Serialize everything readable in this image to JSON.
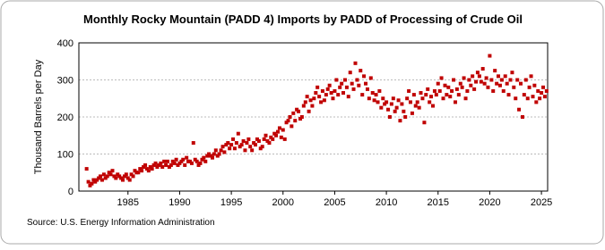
{
  "chart_data": {
    "type": "scatter",
    "title": "Monthly Rocky Mountain (PADD 4) Imports by PADD of Processing of Crude Oil",
    "y_label": "Thousand Barrels per Day",
    "source": "Source: U.S. Energy Information Administration",
    "color": "#c00000",
    "xlim": [
      1980.25,
      2025.6
    ],
    "xticks": [
      1985,
      1990,
      1995,
      2000,
      2005,
      2010,
      2015,
      2020,
      2025
    ],
    "ylim": [
      0,
      400
    ],
    "yticks": [
      0,
      100,
      200,
      300,
      400
    ],
    "grid": true,
    "x": [
      1981,
      1981.17,
      1981.33,
      1981.5,
      1981.67,
      1981.83,
      1982,
      1982.17,
      1982.33,
      1982.5,
      1982.67,
      1982.83,
      1983,
      1983.17,
      1983.33,
      1983.5,
      1983.67,
      1983.83,
      1984,
      1984.17,
      1984.33,
      1984.5,
      1984.67,
      1984.83,
      1985,
      1985.17,
      1985.33,
      1985.5,
      1985.67,
      1985.83,
      1986,
      1986.17,
      1986.33,
      1986.5,
      1986.67,
      1986.83,
      1987,
      1987.17,
      1987.33,
      1987.5,
      1987.67,
      1987.83,
      1988,
      1988.17,
      1988.33,
      1988.5,
      1988.67,
      1988.83,
      1989,
      1989.17,
      1989.33,
      1989.5,
      1989.67,
      1989.83,
      1990,
      1990.17,
      1990.33,
      1990.5,
      1990.67,
      1990.83,
      1991,
      1991.17,
      1991.33,
      1991.5,
      1991.67,
      1991.83,
      1992,
      1992.17,
      1992.33,
      1992.5,
      1992.67,
      1992.83,
      1993,
      1993.17,
      1993.33,
      1993.5,
      1993.67,
      1993.83,
      1994,
      1994.17,
      1994.33,
      1994.5,
      1994.67,
      1994.83,
      1995,
      1995.17,
      1995.33,
      1995.5,
      1995.67,
      1995.83,
      1996,
      1996.17,
      1996.33,
      1996.5,
      1996.67,
      1996.83,
      1997,
      1997.17,
      1997.33,
      1997.5,
      1997.67,
      1997.83,
      1998,
      1998.17,
      1998.33,
      1998.5,
      1998.67,
      1998.83,
      1999,
      1999.17,
      1999.33,
      1999.5,
      1999.67,
      1999.83,
      2000,
      2000.17,
      2000.33,
      2000.5,
      2000.67,
      2000.83,
      2001,
      2001.17,
      2001.33,
      2001.5,
      2001.67,
      2001.83,
      2002,
      2002.17,
      2002.33,
      2002.5,
      2002.67,
      2002.83,
      2003,
      2003.17,
      2003.33,
      2003.5,
      2003.67,
      2003.83,
      2004,
      2004.17,
      2004.33,
      2004.5,
      2004.67,
      2004.83,
      2005,
      2005.17,
      2005.33,
      2005.5,
      2005.67,
      2005.83,
      2006,
      2006.17,
      2006.33,
      2006.5,
      2006.67,
      2006.83,
      2007,
      2007.17,
      2007.33,
      2007.5,
      2007.67,
      2007.83,
      2008,
      2008.17,
      2008.33,
      2008.5,
      2008.67,
      2008.83,
      2009,
      2009.17,
      2009.33,
      2009.5,
      2009.67,
      2009.83,
      2010,
      2010.17,
      2010.33,
      2010.5,
      2010.67,
      2010.83,
      2011,
      2011.17,
      2011.33,
      2011.5,
      2011.67,
      2011.83,
      2012,
      2012.17,
      2012.33,
      2012.5,
      2012.67,
      2012.83,
      2013,
      2013.17,
      2013.33,
      2013.5,
      2013.67,
      2013.83,
      2014,
      2014.17,
      2014.33,
      2014.5,
      2014.67,
      2014.83,
      2015,
      2015.17,
      2015.33,
      2015.5,
      2015.67,
      2015.83,
      2016,
      2016.17,
      2016.33,
      2016.5,
      2016.67,
      2016.83,
      2017,
      2017.17,
      2017.33,
      2017.5,
      2017.67,
      2017.83,
      2018,
      2018.17,
      2018.33,
      2018.5,
      2018.67,
      2018.83,
      2019,
      2019.17,
      2019.33,
      2019.5,
      2019.67,
      2019.83,
      2020,
      2020.17,
      2020.33,
      2020.5,
      2020.67,
      2020.83,
      2021,
      2021.17,
      2021.33,
      2021.5,
      2021.67,
      2021.83,
      2022,
      2022.17,
      2022.33,
      2022.5,
      2022.67,
      2022.83,
      2023,
      2023.17,
      2023.33,
      2023.5,
      2023.67,
      2023.83,
      2024,
      2024.17,
      2024.33,
      2024.5,
      2024.67,
      2024.83,
      2025,
      2025.17,
      2025.33,
      2025.5
    ],
    "values": [
      60,
      25,
      15,
      20,
      30,
      25,
      30,
      35,
      40,
      30,
      45,
      35,
      40,
      50,
      45,
      55,
      40,
      35,
      45,
      40,
      35,
      30,
      40,
      45,
      35,
      30,
      45,
      40,
      55,
      50,
      50,
      60,
      55,
      65,
      70,
      60,
      55,
      65,
      60,
      70,
      75,
      65,
      70,
      75,
      65,
      80,
      70,
      80,
      65,
      70,
      80,
      75,
      85,
      70,
      75,
      80,
      85,
      70,
      90,
      80,
      80,
      75,
      130,
      85,
      80,
      70,
      75,
      85,
      90,
      80,
      95,
      100,
      95,
      90,
      100,
      110,
      95,
      100,
      110,
      120,
      105,
      125,
      130,
      115,
      125,
      140,
      115,
      130,
      155,
      120,
      125,
      135,
      110,
      130,
      140,
      120,
      110,
      130,
      125,
      140,
      135,
      115,
      120,
      140,
      150,
      135,
      130,
      145,
      140,
      155,
      150,
      160,
      170,
      145,
      165,
      140,
      185,
      190,
      200,
      175,
      210,
      190,
      220,
      215,
      195,
      200,
      230,
      240,
      255,
      215,
      245,
      230,
      250,
      265,
      280,
      255,
      240,
      270,
      245,
      260,
      275,
      285,
      265,
      250,
      270,
      300,
      260,
      280,
      290,
      265,
      300,
      280,
      255,
      320,
      290,
      275,
      345,
      300,
      285,
      325,
      260,
      310,
      290,
      275,
      250,
      305,
      265,
      245,
      260,
      240,
      270,
      225,
      250,
      235,
      240,
      220,
      200,
      235,
      250,
      215,
      225,
      245,
      190,
      235,
      215,
      200,
      250,
      270,
      240,
      210,
      260,
      230,
      240,
      225,
      265,
      250,
      185,
      260,
      275,
      240,
      255,
      230,
      270,
      260,
      290,
      270,
      305,
      250,
      285,
      260,
      280,
      255,
      270,
      300,
      240,
      275,
      260,
      290,
      280,
      305,
      250,
      270,
      300,
      285,
      310,
      275,
      295,
      320,
      310,
      295,
      330,
      290,
      305,
      280,
      365,
      300,
      270,
      325,
      290,
      310,
      285,
      300,
      270,
      310,
      290,
      260,
      300,
      320,
      280,
      250,
      300,
      220,
      290,
      200,
      260,
      300,
      250,
      280,
      310,
      255,
      285,
      240,
      270,
      250,
      265,
      280,
      255,
      270
    ]
  }
}
